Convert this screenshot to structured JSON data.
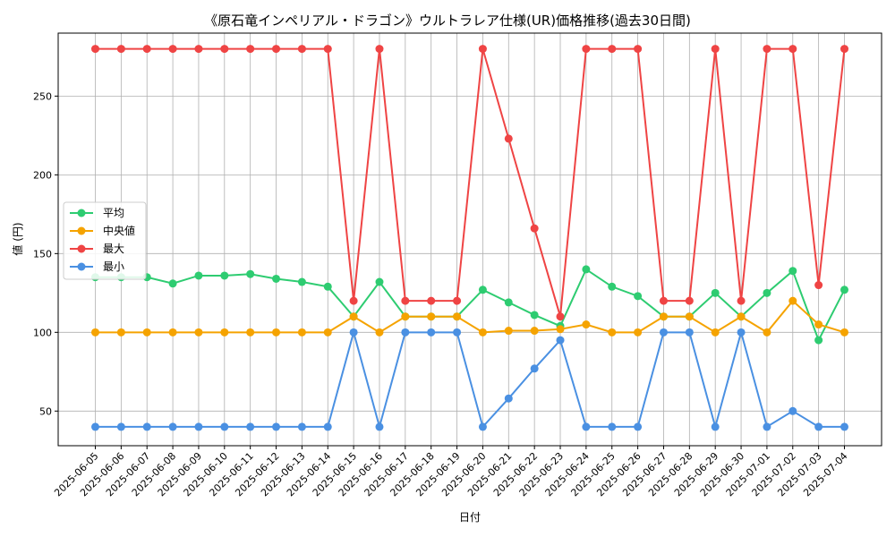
{
  "chart_data": {
    "type": "line",
    "title": "《原石竜インペリアル・ドラゴン》ウルトラレア仕様(UR)価格推移(過去30日間)",
    "xlabel": "日付",
    "ylabel": "値 (円)",
    "ylim": [
      28,
      290
    ],
    "yticks": [
      50,
      100,
      150,
      200,
      250
    ],
    "grid": true,
    "legend_position": "center-left",
    "categories": [
      "2025-06-05",
      "2025-06-06",
      "2025-06-07",
      "2025-06-08",
      "2025-06-09",
      "2025-06-10",
      "2025-06-11",
      "2025-06-12",
      "2025-06-13",
      "2025-06-14",
      "2025-06-15",
      "2025-06-16",
      "2025-06-17",
      "2025-06-18",
      "2025-06-19",
      "2025-06-20",
      "2025-06-21",
      "2025-06-22",
      "2025-06-23",
      "2025-06-24",
      "2025-06-25",
      "2025-06-26",
      "2025-06-27",
      "2025-06-28",
      "2025-06-29",
      "2025-06-30",
      "2025-07-01",
      "2025-07-02",
      "2025-07-03",
      "2025-07-04"
    ],
    "series": [
      {
        "name": "平均",
        "color": "#2ecc71",
        "values": [
          135,
          135,
          135,
          131,
          136,
          136,
          137,
          134,
          132,
          129,
          110,
          132,
          110,
          110,
          110,
          127,
          119,
          111,
          104,
          140,
          129,
          123,
          110,
          110,
          125,
          110,
          125,
          139,
          95,
          127
        ]
      },
      {
        "name": "中央値",
        "color": "#f5a300",
        "values": [
          100,
          100,
          100,
          100,
          100,
          100,
          100,
          100,
          100,
          100,
          110,
          100,
          110,
          110,
          110,
          100,
          101,
          101,
          102,
          105,
          100,
          100,
          110,
          110,
          100,
          110,
          100,
          120,
          105,
          100
        ]
      },
      {
        "name": "最大",
        "color": "#ef4444",
        "values": [
          280,
          280,
          280,
          280,
          280,
          280,
          280,
          280,
          280,
          280,
          120,
          280,
          120,
          120,
          120,
          280,
          223,
          166,
          110,
          280,
          280,
          280,
          120,
          120,
          280,
          120,
          280,
          280,
          130,
          280
        ]
      },
      {
        "name": "最小",
        "color": "#4a90e2",
        "values": [
          40,
          40,
          40,
          40,
          40,
          40,
          40,
          40,
          40,
          40,
          100,
          40,
          100,
          100,
          100,
          40,
          58,
          77,
          95,
          40,
          40,
          40,
          100,
          100,
          40,
          100,
          40,
          50,
          40,
          40
        ]
      }
    ]
  }
}
